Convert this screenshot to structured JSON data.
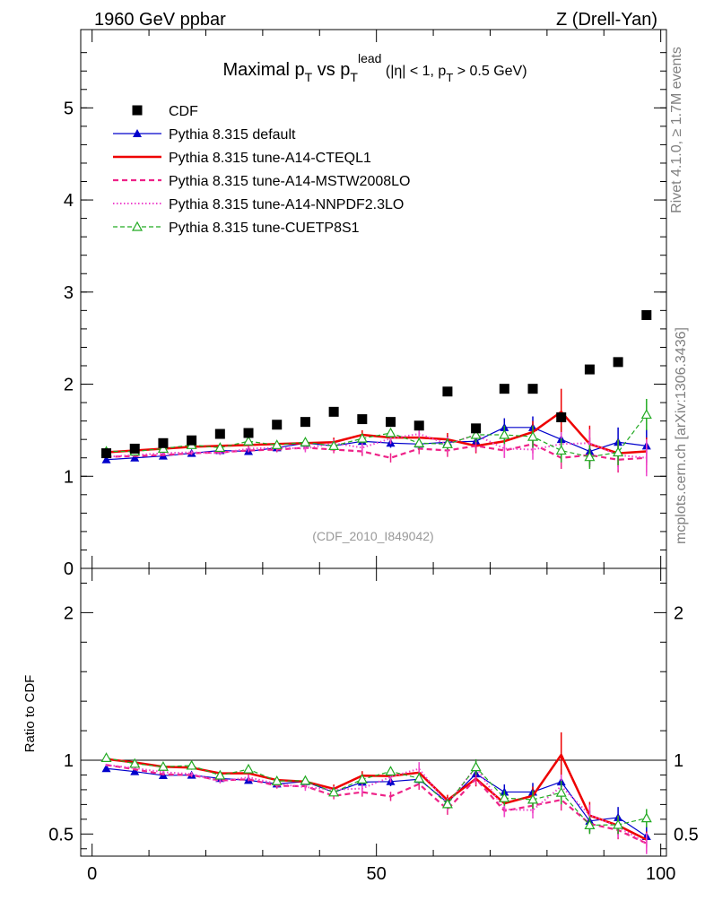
{
  "header": {
    "left": "1960 GeV ppbar",
    "right": "Z (Drell-Yan)"
  },
  "side": {
    "top": "Rivet 4.1.0, ≥ 1.7M events",
    "bottom": "mcplots.cern.ch [arXiv:1306.3436]"
  },
  "chart_data": {
    "type": "scatter",
    "title": "Maximal p_T vs p_T^lead (|η| < 1, p_T > 0.5 GeV)",
    "title_parts": {
      "t1": "Maximal p",
      "t1sub": "T",
      "t2": " vs p",
      "t2sub": "T",
      "t2sup": "lead",
      "t3": " (|η| < 1, p",
      "t3sub": "T",
      "t4": " > 0.5 GeV)"
    },
    "analysis_tag": "(CDF_2010_I849042)",
    "xlim": [
      -2,
      101
    ],
    "xticks": [
      0,
      50,
      100
    ],
    "ylim_main": [
      0,
      5.85
    ],
    "yticks_main": [
      0,
      1,
      2,
      3,
      4,
      5
    ],
    "ylabel_ratio": "Ratio to CDF",
    "ylim_ratio": [
      0.35,
      2.3
    ],
    "yticks_ratio": [
      0.5,
      1,
      2
    ],
    "x": [
      2.5,
      7.5,
      12.5,
      17.5,
      22.5,
      27.5,
      32.5,
      37.5,
      42.5,
      47.5,
      52.5,
      57.5,
      62.5,
      67.5,
      72.5,
      77.5,
      82.5,
      87.5,
      92.5,
      97.5
    ],
    "data": {
      "name": "CDF",
      "values": [
        1.25,
        1.3,
        1.36,
        1.39,
        1.46,
        1.47,
        1.56,
        1.59,
        1.7,
        1.62,
        1.59,
        1.55,
        1.92,
        1.52,
        1.95,
        1.95,
        1.64,
        2.16,
        2.24,
        2.75
      ]
    },
    "series": [
      {
        "name": "Pythia 8.315 default",
        "color": "#0000cc",
        "style": "solid-triangle",
        "values": [
          1.18,
          1.2,
          1.22,
          1.25,
          1.28,
          1.27,
          1.31,
          1.36,
          1.33,
          1.38,
          1.36,
          1.35,
          1.37,
          1.38,
          1.53,
          1.53,
          1.4,
          1.27,
          1.37,
          1.33
        ],
        "errors": [
          0.01,
          0.01,
          0.01,
          0.01,
          0.02,
          0.02,
          0.03,
          0.04,
          0.04,
          0.05,
          0.05,
          0.06,
          0.07,
          0.08,
          0.1,
          0.12,
          0.14,
          0.15,
          0.16,
          0.18
        ]
      },
      {
        "name": "Pythia 8.315 tune-A14-CTEQL1",
        "color": "#ee0000",
        "style": "solid-thick",
        "values": [
          1.26,
          1.28,
          1.3,
          1.32,
          1.33,
          1.34,
          1.35,
          1.36,
          1.37,
          1.45,
          1.42,
          1.42,
          1.4,
          1.33,
          1.38,
          1.48,
          1.7,
          1.35,
          1.25,
          1.27
        ],
        "errors": [
          0.01,
          0.01,
          0.01,
          0.02,
          0.02,
          0.03,
          0.03,
          0.04,
          0.05,
          0.05,
          0.06,
          0.06,
          0.07,
          0.08,
          0.1,
          0.12,
          0.25,
          0.2,
          0.15,
          0.15
        ]
      },
      {
        "name": "Pythia 8.315 tune-A14-MSTW2008LO",
        "color": "#ee2288",
        "style": "dashed",
        "values": [
          1.21,
          1.22,
          1.23,
          1.25,
          1.26,
          1.28,
          1.29,
          1.31,
          1.29,
          1.27,
          1.2,
          1.3,
          1.28,
          1.33,
          1.28,
          1.35,
          1.2,
          1.23,
          1.18,
          1.2
        ],
        "errors": [
          0.01,
          0.01,
          0.01,
          0.02,
          0.02,
          0.02,
          0.03,
          0.03,
          0.04,
          0.05,
          0.05,
          0.06,
          0.07,
          0.07,
          0.08,
          0.1,
          0.12,
          0.13,
          0.14,
          0.16
        ]
      },
      {
        "name": "Pythia 8.315 tune-A14-NNPDF2.3LO",
        "color": "#ee44cc",
        "style": "dotted",
        "values": [
          1.21,
          1.23,
          1.25,
          1.26,
          1.25,
          1.3,
          1.31,
          1.3,
          1.36,
          1.31,
          1.41,
          1.46,
          1.35,
          1.45,
          1.3,
          1.29,
          1.35,
          1.36,
          1.23,
          1.2
        ],
        "errors": [
          0.01,
          0.01,
          0.02,
          0.02,
          0.02,
          0.03,
          0.03,
          0.04,
          0.04,
          0.05,
          0.06,
          0.07,
          0.08,
          0.08,
          0.1,
          0.11,
          0.13,
          0.15,
          0.16,
          0.2
        ]
      },
      {
        "name": "Pythia 8.315 tune-CUETP8S1",
        "color": "#22aa22",
        "style": "dashed-open-triangle",
        "values": [
          1.27,
          1.27,
          1.3,
          1.34,
          1.31,
          1.38,
          1.34,
          1.37,
          1.33,
          1.41,
          1.47,
          1.36,
          1.35,
          1.45,
          1.45,
          1.43,
          1.28,
          1.21,
          1.26,
          1.67
        ],
        "errors": [
          0.01,
          0.01,
          0.01,
          0.02,
          0.02,
          0.02,
          0.03,
          0.04,
          0.04,
          0.05,
          0.05,
          0.06,
          0.06,
          0.08,
          0.1,
          0.12,
          0.13,
          0.13,
          0.14,
          0.17
        ]
      }
    ]
  }
}
